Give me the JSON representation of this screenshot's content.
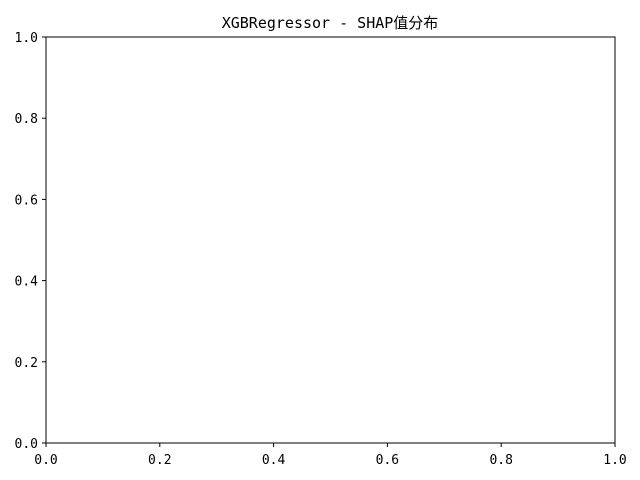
{
  "chart_data": {
    "type": "scatter",
    "title": "XGBRegressor - SHAP值分布",
    "xlabel": "",
    "ylabel": "",
    "xlim": [
      0,
      1
    ],
    "ylim": [
      0,
      1
    ],
    "xticks": [
      "0.0",
      "0.2",
      "0.4",
      "0.6",
      "0.8",
      "1.0"
    ],
    "yticks": [
      "0.0",
      "0.2",
      "0.4",
      "0.6",
      "0.8",
      "1.0"
    ],
    "grid": false,
    "series": []
  }
}
